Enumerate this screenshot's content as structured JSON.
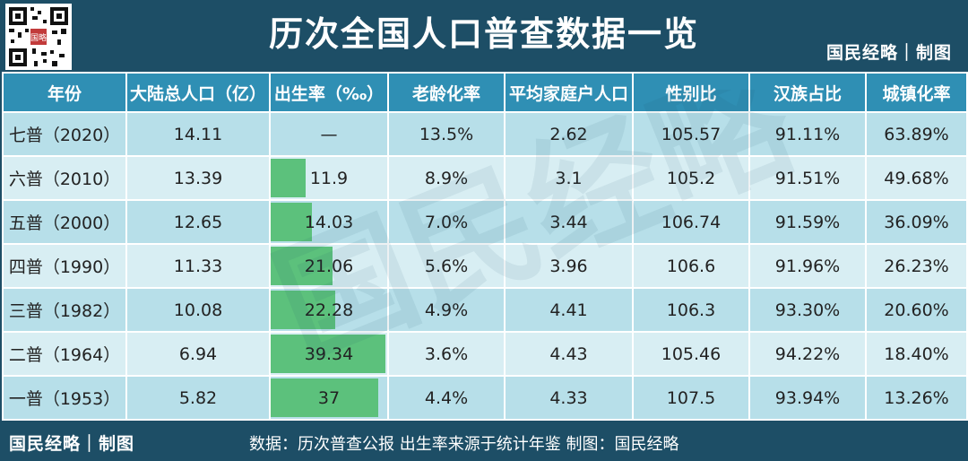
{
  "header": {
    "title": "历次全国人口普查数据一览",
    "brand": "国民经略｜制图"
  },
  "watermark": "国民经略",
  "chart_data": {
    "type": "table",
    "columns": [
      "年份",
      "大陆总人口（亿）",
      "出生率（‰）",
      "老龄化率",
      "平均家庭户人口",
      "性别比",
      "汉族占比",
      "城镇化率"
    ],
    "rows": [
      {
        "year": "七普（2020）",
        "population": "14.11",
        "birth_rate_label": "—",
        "birth_rate": null,
        "aging": "13.5%",
        "household": "2.62",
        "sex_ratio": "105.57",
        "han": "91.11%",
        "urban": "63.89%"
      },
      {
        "year": "六普（2010）",
        "population": "13.39",
        "birth_rate_label": "11.9",
        "birth_rate": 11.9,
        "aging": "8.9%",
        "household": "3.1",
        "sex_ratio": "105.2",
        "han": "91.51%",
        "urban": "49.68%"
      },
      {
        "year": "五普（2000）",
        "population": "12.65",
        "birth_rate_label": "14.03",
        "birth_rate": 14.03,
        "aging": "7.0%",
        "household": "3.44",
        "sex_ratio": "106.74",
        "han": "91.59%",
        "urban": "36.09%"
      },
      {
        "year": "四普（1990）",
        "population": "11.33",
        "birth_rate_label": "21.06",
        "birth_rate": 21.06,
        "aging": "5.6%",
        "household": "3.96",
        "sex_ratio": "106.6",
        "han": "91.96%",
        "urban": "26.23%"
      },
      {
        "year": "三普（1982）",
        "population": "10.08",
        "birth_rate_label": "22.28",
        "birth_rate": 22.28,
        "aging": "4.9%",
        "household": "4.41",
        "sex_ratio": "106.3",
        "han": "93.30%",
        "urban": "20.60%"
      },
      {
        "year": "二普（1964）",
        "population": "6.94",
        "birth_rate_label": "39.34",
        "birth_rate": 39.34,
        "aging": "3.6%",
        "household": "4.43",
        "sex_ratio": "105.46",
        "han": "94.22%",
        "urban": "18.40%"
      },
      {
        "year": "一普（1953）",
        "population": "5.82",
        "birth_rate_label": "37",
        "birth_rate": 37,
        "aging": "4.4%",
        "household": "4.33",
        "sex_ratio": "107.5",
        "han": "93.94%",
        "urban": "13.26%"
      }
    ],
    "bar_column": "出生率（‰）",
    "bar_max": 39.34
  },
  "colors": {
    "header_bg": "#1d4e66",
    "column_header_bg": "#2f8fb4",
    "row_dark": "#b7dfe9",
    "row_light": "#d8eef3",
    "bar": "#5cc17c"
  },
  "footer": {
    "brand": "国民经略｜制图",
    "source": "数据：历次普查公报  出生率来源于统计年鉴  制图：国民经略"
  }
}
